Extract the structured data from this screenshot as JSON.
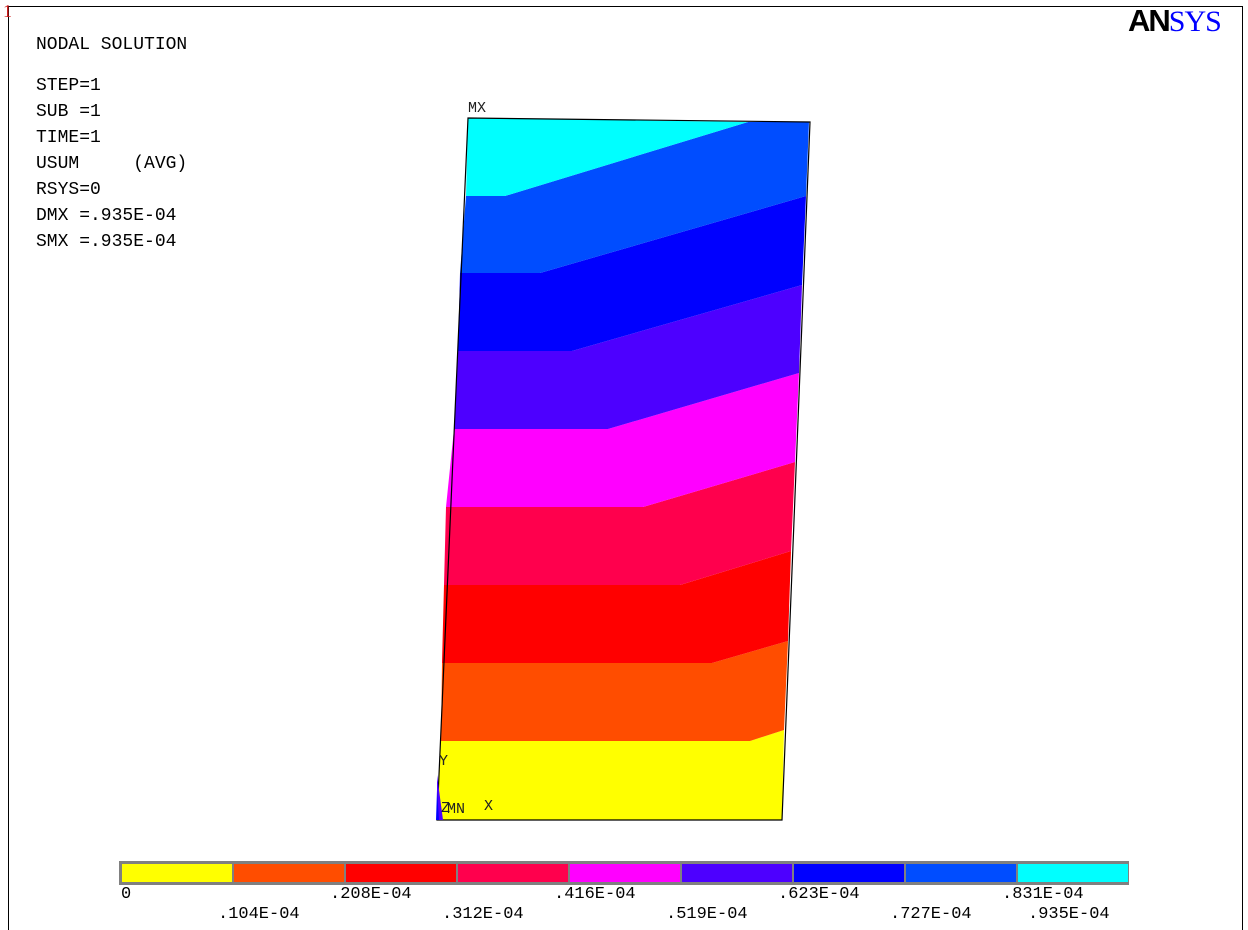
{
  "window_number": "1",
  "title": "NODAL SOLUTION",
  "params": [
    "STEP=1",
    "SUB =1",
    "TIME=1",
    "USUM     (AVG)",
    "RSYS=0",
    "DMX =.935E-04",
    "SMX =.935E-04"
  ],
  "logo": {
    "part1": "AN",
    "part2": "SYS",
    "brand_color": "#0000ff"
  },
  "plot_labels": {
    "max": "MX",
    "min": "MN",
    "y_axis": "Y",
    "x_axis": "X",
    "z_axis": "Z"
  },
  "legend": {
    "colors": [
      "#ffff00",
      "#ff4d00",
      "#ff0000",
      "#ff004d",
      "#ff00ff",
      "#4d00ff",
      "#0000ff",
      "#004dff",
      "#00ffff"
    ],
    "labels": [
      "0",
      ".104E-04",
      ".208E-04",
      ".312E-04",
      ".416E-04",
      ".519E-04",
      ".623E-04",
      ".727E-04",
      ".831E-04",
      ".935E-04"
    ]
  }
}
